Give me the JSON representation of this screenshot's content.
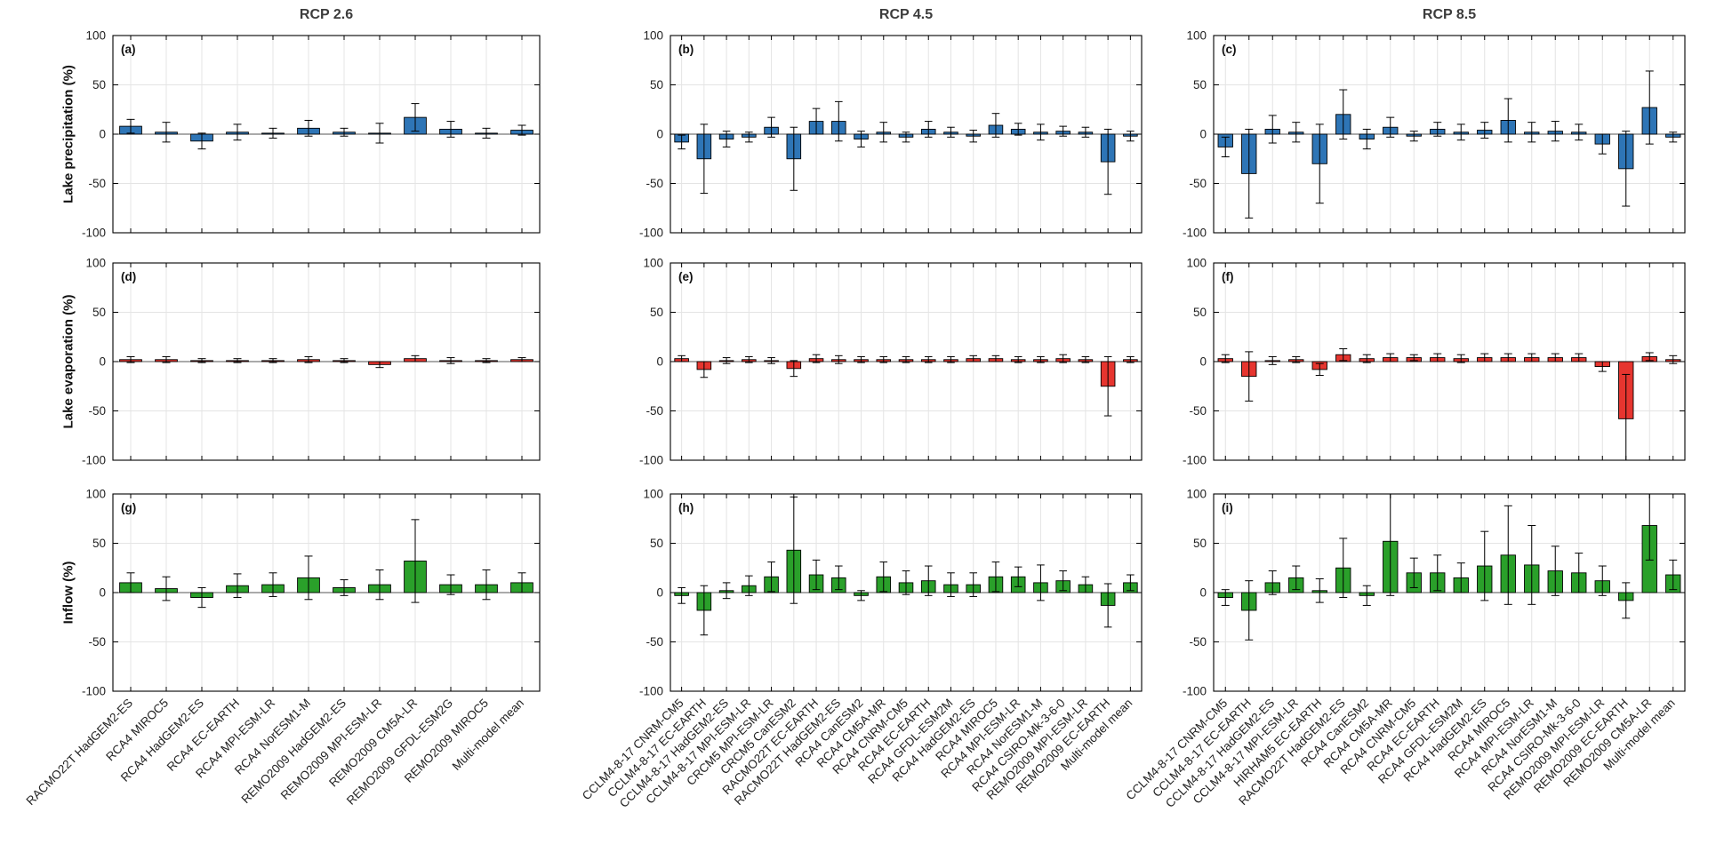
{
  "figure": {
    "column_titles": [
      "RCP 2.6",
      "RCP 4.5",
      "RCP 8.5"
    ],
    "row_labels": [
      "Lake precipitation (%)",
      "Lake evaporation (%)",
      "Inflow (%)"
    ],
    "colors": {
      "precipitation": "#2e75b6",
      "evaporation": "#e6352f",
      "inflow": "#2aa02a"
    },
    "y_axis": {
      "min": -100,
      "max": 100,
      "ticks": [
        -100,
        -50,
        0,
        50,
        100
      ]
    }
  },
  "chart_data": [
    {
      "type": "bar",
      "panel_label": "(a)",
      "row": 0,
      "col": 0,
      "column_title": "RCP 2.6",
      "ylabel": "Lake precipitation (%)",
      "ylim": [
        -100,
        100
      ],
      "yticks": [
        -100,
        -50,
        0,
        50,
        100
      ],
      "color": "#2e75b6",
      "categories": [
        "RACMO22T HadGEM2-ES",
        "RCA4 MIROC5",
        "RCA4 HadGEM2-ES",
        "RCA4 EC-EARTH",
        "RCA4 MPI-ESM-LR",
        "RCA4 NorESM1-M",
        "REMO2009 HadGEM2-ES",
        "REMO2009 MPI-ESM-LR",
        "REMO2009 CM5A-LR",
        "REMO2009 GFDL-ESM2G",
        "REMO2009 MIROC5",
        "Multi-model mean"
      ],
      "values": [
        8,
        2,
        -7,
        2,
        1,
        6,
        2,
        1,
        17,
        5,
        1,
        4
      ],
      "errors": [
        7,
        10,
        8,
        8,
        5,
        8,
        4,
        10,
        14,
        8,
        5,
        5
      ]
    },
    {
      "type": "bar",
      "panel_label": "(b)",
      "row": 0,
      "col": 1,
      "column_title": "RCP 4.5",
      "ylabel": "Lake precipitation (%)",
      "ylim": [
        -100,
        100
      ],
      "yticks": [
        -100,
        -50,
        0,
        50,
        100
      ],
      "color": "#2e75b6",
      "categories": [
        "CCLM4-8-17 CNRM-CM5",
        "CCLM4-8-17 EC-EARTH",
        "CCLM4-8-17 HadGEM2-ES",
        "CCLM4-8-17 MPI-ESM-LR",
        "CRCM5 MPI-ESM-LR",
        "CRCM5 CanESM2",
        "RACMO22T EC-EARTH",
        "RACMO22T HadGEM2-ES",
        "RCA4 CanESM2",
        "RCA4 CM5A-MR",
        "RCA4 CNRM-CM5",
        "RCA4 EC-EARTH",
        "RCA4 GFDL-ESM2M",
        "RCA4 HadGEM2-ES",
        "RCA4 MIROC5",
        "RCA4 MPI-ESM-LR",
        "RCA4 NorESM1-M",
        "RCA4 CSIRO-Mk-3-6-0",
        "REMO2009 MPI-ESM-LR",
        "REMO2009 EC-EARTH",
        "Multi-model mean"
      ],
      "values": [
        -8,
        -25,
        -5,
        -3,
        7,
        -25,
        13,
        13,
        -5,
        2,
        -3,
        5,
        2,
        -2,
        9,
        5,
        2,
        3,
        2,
        -28,
        -2
      ],
      "errors": [
        7,
        35,
        8,
        5,
        10,
        32,
        13,
        20,
        8,
        10,
        5,
        8,
        5,
        6,
        12,
        6,
        8,
        5,
        5,
        33,
        5
      ]
    },
    {
      "type": "bar",
      "panel_label": "(c)",
      "row": 0,
      "col": 2,
      "column_title": "RCP 8.5",
      "ylabel": "Lake precipitation (%)",
      "ylim": [
        -100,
        100
      ],
      "yticks": [
        -100,
        -50,
        0,
        50,
        100
      ],
      "color": "#2e75b6",
      "categories": [
        "CCLM4-8-17 CNRM-CM5",
        "CCLM4-8-17 EC-EARTH",
        "CCLM4-8-17 HadGEM2-ES",
        "CCLM4-8-17 MPI-ESM-LR",
        "HIRHAM5 EC-EARTH",
        "RACMO22T HadGEM2-ES",
        "RCA4 CanESM2",
        "RCA4 CM5A-MR",
        "RCA4 CNRM-CM5",
        "RCA4 EC-EARTH",
        "RCA4 GFDL-ESM2M",
        "RCA4 HadGEM2-ES",
        "RCA4 MIROC5",
        "RCA4 MPI-ESM-LR",
        "RCA4 NorESM1-M",
        "RCA4 CSIRO-Mk-3-6-0",
        "REMO2009 MPI-ESM-LR",
        "REMO2009 EC-EARTH",
        "REMO2009 CM5A-LR",
        "Multi-model mean"
      ],
      "values": [
        -13,
        -40,
        5,
        2,
        -30,
        20,
        -5,
        7,
        -2,
        5,
        2,
        4,
        14,
        2,
        3,
        2,
        -10,
        -35,
        27,
        -3
      ],
      "errors": [
        10,
        45,
        14,
        10,
        40,
        25,
        10,
        10,
        5,
        7,
        8,
        8,
        22,
        10,
        10,
        8,
        10,
        38,
        37,
        5
      ]
    },
    {
      "type": "bar",
      "panel_label": "(d)",
      "row": 1,
      "col": 0,
      "column_title": "RCP 2.6",
      "ylabel": "Lake evaporation (%)",
      "ylim": [
        -100,
        100
      ],
      "yticks": [
        -100,
        -50,
        0,
        50,
        100
      ],
      "color": "#e6352f",
      "categories": [
        "RACMO22T HadGEM2-ES",
        "RCA4 MIROC5",
        "RCA4 HadGEM2-ES",
        "RCA4 EC-EARTH",
        "RCA4 MPI-ESM-LR",
        "RCA4 NorESM1-M",
        "REMO2009 HadGEM2-ES",
        "REMO2009 MPI-ESM-LR",
        "REMO2009 CM5A-LR",
        "REMO2009 GFDL-ESM2G",
        "REMO2009 MIROC5",
        "Multi-model mean"
      ],
      "values": [
        2,
        2,
        1,
        1,
        1,
        2,
        1,
        -3,
        3,
        1,
        1,
        2
      ],
      "errors": [
        3,
        3,
        2,
        2,
        2,
        3,
        2,
        3,
        3,
        3,
        2,
        2
      ]
    },
    {
      "type": "bar",
      "panel_label": "(e)",
      "row": 1,
      "col": 1,
      "column_title": "RCP 4.5",
      "ylabel": "Lake evaporation (%)",
      "ylim": [
        -100,
        100
      ],
      "yticks": [
        -100,
        -50,
        0,
        50,
        100
      ],
      "color": "#e6352f",
      "categories": [
        "CCLM4-8-17 CNRM-CM5",
        "CCLM4-8-17 EC-EARTH",
        "CCLM4-8-17 HadGEM2-ES",
        "CCLM4-8-17 MPI-ESM-LR",
        "CRCM5 MPI-ESM-LR",
        "CRCM5 CanESM2",
        "RACMO22T EC-EARTH",
        "RACMO22T HadGEM2-ES",
        "RCA4 CanESM2",
        "RCA4 CM5A-MR",
        "RCA4 CNRM-CM5",
        "RCA4 EC-EARTH",
        "RCA4 GFDL-ESM2M",
        "RCA4 HadGEM2-ES",
        "RCA4 MIROC5",
        "RCA4 MPI-ESM-LR",
        "RCA4 NorESM1-M",
        "RCA4 CSIRO-Mk-3-6-0",
        "REMO2009 MPI-ESM-LR",
        "REMO2009 EC-EARTH",
        "Multi-model mean"
      ],
      "values": [
        3,
        -8,
        1,
        2,
        1,
        -7,
        3,
        2,
        2,
        2,
        2,
        2,
        2,
        3,
        3,
        2,
        2,
        3,
        2,
        -25,
        2
      ],
      "errors": [
        3,
        8,
        3,
        3,
        3,
        8,
        4,
        4,
        3,
        3,
        3,
        3,
        3,
        3,
        3,
        3,
        3,
        4,
        3,
        30,
        3
      ]
    },
    {
      "type": "bar",
      "panel_label": "(f)",
      "row": 1,
      "col": 2,
      "column_title": "RCP 8.5",
      "ylabel": "Lake evaporation (%)",
      "ylim": [
        -100,
        100
      ],
      "yticks": [
        -100,
        -50,
        0,
        50,
        100
      ],
      "color": "#e6352f",
      "categories": [
        "CCLM4-8-17 CNRM-CM5",
        "CCLM4-8-17 EC-EARTH",
        "CCLM4-8-17 HadGEM2-ES",
        "CCLM4-8-17 MPI-ESM-LR",
        "HIRHAM5 EC-EARTH",
        "RACMO22T HadGEM2-ES",
        "RCA4 CanESM2",
        "RCA4 CM5A-MR",
        "RCA4 CNRM-CM5",
        "RCA4 EC-EARTH",
        "RCA4 GFDL-ESM2M",
        "RCA4 HadGEM2-ES",
        "RCA4 MIROC5",
        "RCA4 MPI-ESM-LR",
        "RCA4 NorESM1-M",
        "RCA4 CSIRO-Mk-3-6-0",
        "REMO2009 MPI-ESM-LR",
        "REMO2009 EC-EARTH",
        "REMO2009 CM5A-LR",
        "Multi-model mean"
      ],
      "values": [
        3,
        -15,
        1,
        2,
        -8,
        7,
        3,
        4,
        4,
        4,
        3,
        4,
        4,
        4,
        4,
        4,
        -5,
        -58,
        5,
        2
      ],
      "errors": [
        4,
        25,
        4,
        3,
        6,
        6,
        4,
        4,
        3,
        4,
        4,
        4,
        4,
        4,
        4,
        4,
        5,
        45,
        4,
        4
      ]
    },
    {
      "type": "bar",
      "panel_label": "(g)",
      "row": 2,
      "col": 0,
      "column_title": "RCP 2.6",
      "ylabel": "Inflow (%)",
      "ylim": [
        -100,
        100
      ],
      "yticks": [
        -100,
        -50,
        0,
        50,
        100
      ],
      "color": "#2aa02a",
      "categories": [
        "RACMO22T HadGEM2-ES",
        "RCA4 MIROC5",
        "RCA4 HadGEM2-ES",
        "RCA4 EC-EARTH",
        "RCA4 MPI-ESM-LR",
        "RCA4 NorESM1-M",
        "REMO2009 HadGEM2-ES",
        "REMO2009 MPI-ESM-LR",
        "REMO2009 CM5A-LR",
        "REMO2009 GFDL-ESM2G",
        "REMO2009 MIROC5",
        "Multi-model mean"
      ],
      "values": [
        10,
        4,
        -5,
        7,
        8,
        15,
        5,
        8,
        32,
        8,
        8,
        10
      ],
      "errors": [
        10,
        12,
        10,
        12,
        12,
        22,
        8,
        15,
        42,
        10,
        15,
        10
      ]
    },
    {
      "type": "bar",
      "panel_label": "(h)",
      "row": 2,
      "col": 1,
      "column_title": "RCP 4.5",
      "ylabel": "Inflow (%)",
      "ylim": [
        -100,
        100
      ],
      "yticks": [
        -100,
        -50,
        0,
        50,
        100
      ],
      "color": "#2aa02a",
      "categories": [
        "CCLM4-8-17 CNRM-CM5",
        "CCLM4-8-17 EC-EARTH",
        "CCLM4-8-17 HadGEM2-ES",
        "CCLM4-8-17 MPI-ESM-LR",
        "CRCM5 MPI-ESM-LR",
        "CRCM5 CanESM2",
        "RACMO22T EC-EARTH",
        "RACMO22T HadGEM2-ES",
        "RCA4 CanESM2",
        "RCA4 CM5A-MR",
        "RCA4 CNRM-CM5",
        "RCA4 EC-EARTH",
        "RCA4 GFDL-ESM2M",
        "RCA4 HadGEM2-ES",
        "RCA4 MIROC5",
        "RCA4 MPI-ESM-LR",
        "RCA4 NorESM1-M",
        "RCA4 CSIRO-Mk-3-6-0",
        "REMO2009 MPI-ESM-LR",
        "REMO2009 EC-EARTH",
        "Multi-model mean"
      ],
      "values": [
        -3,
        -18,
        2,
        7,
        16,
        43,
        18,
        15,
        -3,
        16,
        10,
        12,
        8,
        8,
        16,
        16,
        10,
        12,
        8,
        -13,
        10
      ],
      "errors": [
        8,
        25,
        8,
        10,
        15,
        54,
        15,
        12,
        5,
        15,
        12,
        15,
        12,
        12,
        15,
        10,
        18,
        10,
        8,
        22,
        8
      ]
    },
    {
      "type": "bar",
      "panel_label": "(i)",
      "row": 2,
      "col": 2,
      "column_title": "RCP 8.5",
      "ylabel": "Inflow (%)",
      "ylim": [
        -100,
        100
      ],
      "yticks": [
        -100,
        -50,
        0,
        50,
        100
      ],
      "color": "#2aa02a",
      "categories": [
        "CCLM4-8-17 CNRM-CM5",
        "CCLM4-8-17 EC-EARTH",
        "CCLM4-8-17 HadGEM2-ES",
        "CCLM4-8-17 MPI-ESM-LR",
        "HIRHAM5 EC-EARTH",
        "RACMO22T HadGEM2-ES",
        "RCA4 CanESM2",
        "RCA4 CM5A-MR",
        "RCA4 CNRM-CM5",
        "RCA4 EC-EARTH",
        "RCA4 GFDL-ESM2M",
        "RCA4 HadGEM2-ES",
        "RCA4 MIROC5",
        "RCA4 MPI-ESM-LR",
        "RCA4 NorESM1-M",
        "RCA4 CSIRO-Mk-3-6-0",
        "REMO2009 MPI-ESM-LR",
        "REMO2009 EC-EARTH",
        "REMO2009 CM5A-LR",
        "Multi-model mean"
      ],
      "values": [
        -5,
        -18,
        10,
        15,
        2,
        25,
        -3,
        52,
        20,
        20,
        15,
        27,
        38,
        28,
        22,
        20,
        12,
        -8,
        68,
        18
      ],
      "errors": [
        8,
        30,
        12,
        12,
        12,
        30,
        10,
        55,
        15,
        18,
        15,
        35,
        50,
        40,
        25,
        20,
        15,
        18,
        35,
        15
      ]
    }
  ]
}
